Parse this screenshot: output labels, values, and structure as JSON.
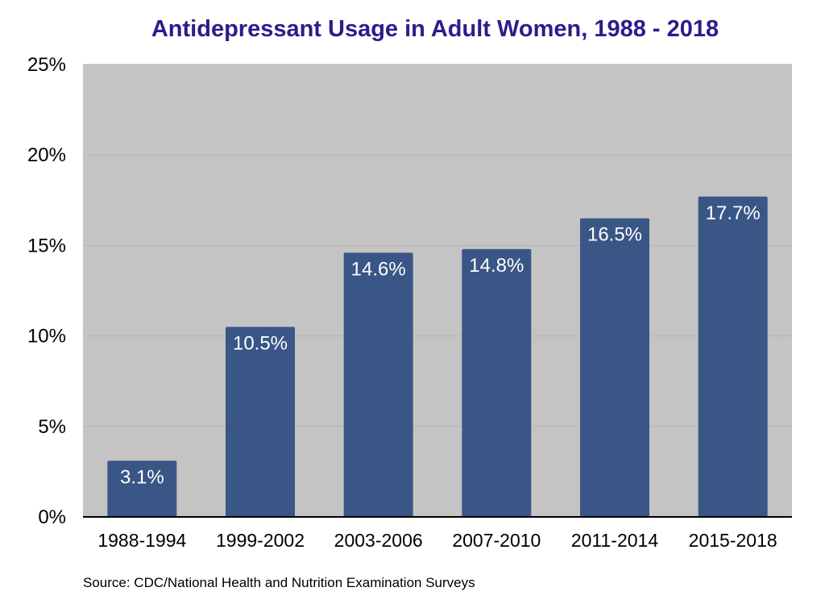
{
  "chart_data": {
    "type": "bar",
    "title": "Antidepressant Usage in Adult Women, 1988 - 2018",
    "categories": [
      "1988-1994",
      "1999-2002",
      "2003-2006",
      "2007-2010",
      "2011-2014",
      "2015-2018"
    ],
    "values": [
      3.1,
      10.5,
      14.6,
      14.8,
      16.5,
      17.7
    ],
    "data_labels": [
      "3.1%",
      "10.5%",
      "14.6%",
      "14.8%",
      "16.5%",
      "17.7%"
    ],
    "ylim": [
      0,
      25
    ],
    "yticks": [
      0,
      5,
      10,
      15,
      20,
      25
    ],
    "ytick_labels": [
      "0%",
      "5%",
      "10%",
      "15%",
      "20%",
      "25%"
    ],
    "xlabel": "",
    "ylabel": "",
    "grid": true,
    "legend": "none",
    "source": "Source: CDC/National Health and Nutrition Examination Surveys"
  },
  "colors": {
    "title": "#2e1b8c",
    "bar": "#3a5686",
    "plot_background": "#c4c4c4",
    "gridline": "#b5b5b5",
    "axis": "#000000",
    "data_label": "#ffffff"
  }
}
